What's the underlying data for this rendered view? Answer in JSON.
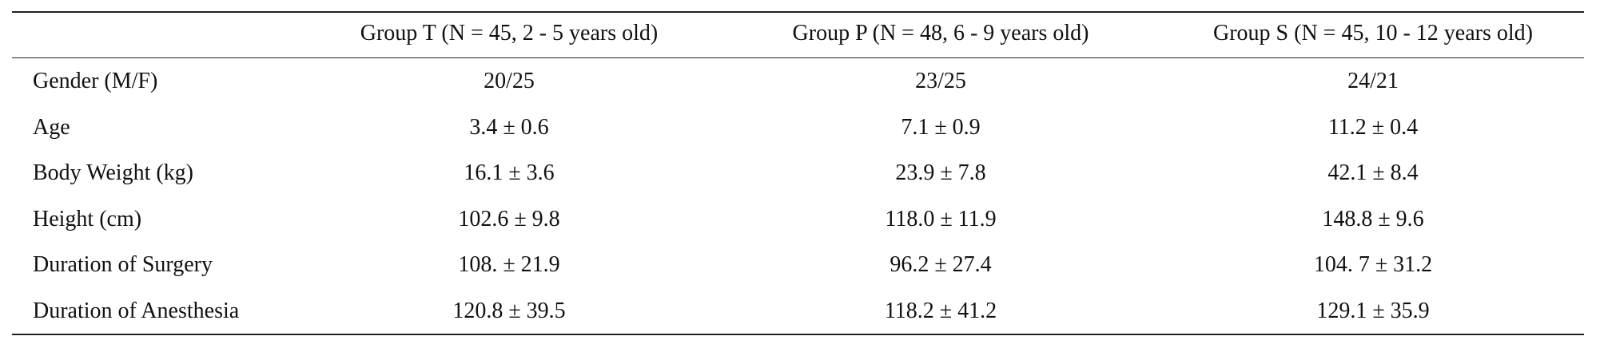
{
  "table": {
    "header": [
      "Group T (N = 45, 2 - 5 years old)",
      "Group P (N = 48, 6 - 9 years old)",
      "Group S (N = 45, 10 - 12 years old)"
    ],
    "rows": [
      [
        "Gender (M/F)",
        "20/25",
        "23/25",
        "24/21"
      ],
      [
        "Age",
        "3.4 ± 0.6",
        "7.1 ± 0.9",
        "11.2 ± 0.4"
      ],
      [
        "Body Weight (kg)",
        "16.1 ± 3.6",
        "23.9 ± 7.8",
        "42.1 ± 8.4"
      ],
      [
        "Height (cm)",
        "102.6 ± 9.8",
        "118.0 ± 11.9",
        "148.8 ± 9.6"
      ],
      [
        "Duration of Surgery",
        "108. ± 21.9",
        "96.2 ± 27.4",
        "104. 7 ± 31.2"
      ],
      [
        "Duration of Anesthesia",
        "120.8 ± 39.5",
        "118.2 ± 41.2",
        "129.1 ± 35.9"
      ]
    ]
  }
}
